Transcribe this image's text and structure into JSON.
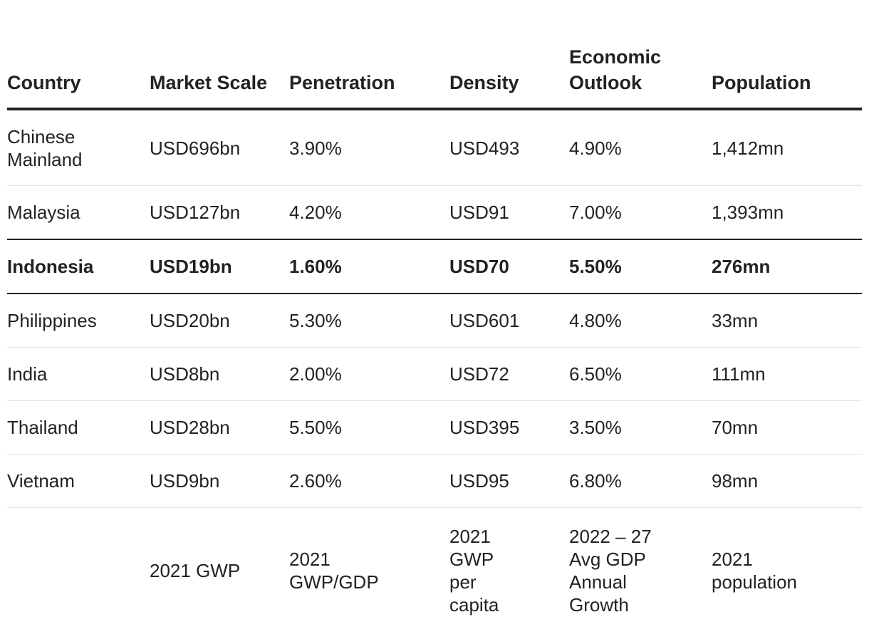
{
  "headers": [
    "Country",
    "Market Scale",
    "Penetration",
    "Density",
    "Economic Outlook",
    "Population"
  ],
  "rows": [
    [
      "Chinese Mainland",
      "USD696bn",
      "3.90%",
      "USD493",
      "4.90%",
      "1,412mn"
    ],
    [
      "Malaysia",
      "USD127bn",
      "4.20%",
      "USD91",
      "7.00%",
      "1,393mn"
    ],
    [
      "Indonesia",
      "USD19bn",
      "1.60%",
      "USD70",
      "5.50%",
      "276mn"
    ],
    [
      "Philippines",
      "USD20bn",
      "5.30%",
      "USD601",
      "4.80%",
      "33mn"
    ],
    [
      "India",
      "USD8bn",
      "2.00%",
      "USD72",
      "6.50%",
      "111mn"
    ],
    [
      "Thailand",
      "USD28bn",
      "5.50%",
      "USD395",
      "3.50%",
      "70mn"
    ],
    [
      "Vietnam",
      "USD9bn",
      "2.60%",
      "USD95",
      "6.80%",
      "98mn"
    ]
  ],
  "highlighted_row": "Indonesia",
  "notes": [
    "",
    "2021 GWP",
    "2021 GWP/GDP",
    "2021 GWP per capita",
    "2022 – 27 Avg GDP Annual Growth",
    "2021 population"
  ]
}
